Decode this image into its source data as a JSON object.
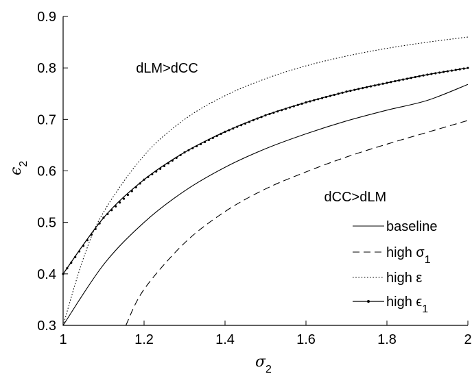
{
  "chart_data": {
    "type": "line",
    "xlabel": "σ",
    "xlabel_sub": "2",
    "ylabel": "ϵ",
    "ylabel_sub": "2",
    "xlim": [
      1,
      2
    ],
    "ylim": [
      0.3,
      0.9
    ],
    "xticks": [
      1,
      1.2,
      1.4,
      1.6,
      1.8,
      2
    ],
    "xtick_labels": [
      "1",
      "1.2",
      "1.4",
      "1.6",
      "1.8",
      "2"
    ],
    "yticks": [
      0.3,
      0.4,
      0.5,
      0.6,
      0.7,
      0.8,
      0.9
    ],
    "ytick_labels": [
      "0.3",
      "0.4",
      "0.5",
      "0.6",
      "0.7",
      "0.8",
      "0.9"
    ],
    "grid": false,
    "legend_position": "lower-right",
    "annotations": [
      {
        "text": "dLM>dCC",
        "x": 1.18,
        "y": 0.8
      },
      {
        "text": "dCC>dLM",
        "x": 1.645,
        "y": 0.55
      }
    ],
    "series": [
      {
        "name": "baseline",
        "label_main": "baseline",
        "label_sub": "",
        "style": "solid",
        "markers": false,
        "x": [
          1.0,
          1.1,
          1.2,
          1.3,
          1.4,
          1.5,
          1.6,
          1.7,
          1.8,
          1.9,
          2.0
        ],
        "y": [
          0.3,
          0.418,
          0.5,
          0.561,
          0.607,
          0.643,
          0.672,
          0.697,
          0.718,
          0.737,
          0.768
        ]
      },
      {
        "name": "high σ1",
        "label_main": "high σ",
        "label_sub": "1",
        "style": "dashed",
        "markers": false,
        "x": [
          1.155,
          1.2,
          1.3,
          1.4,
          1.5,
          1.6,
          1.7,
          1.8,
          1.9,
          2.0
        ],
        "y": [
          0.3,
          0.37,
          0.46,
          0.521,
          0.565,
          0.598,
          0.627,
          0.652,
          0.675,
          0.698
        ]
      },
      {
        "name": "high ε",
        "label_main": "high ε",
        "label_sub": "",
        "style": "dotted",
        "markers": false,
        "x": [
          1.0,
          1.05,
          1.1,
          1.2,
          1.3,
          1.4,
          1.5,
          1.6,
          1.7,
          1.8,
          1.9,
          2.0
        ],
        "y": [
          0.3,
          0.43,
          0.52,
          0.63,
          0.7,
          0.746,
          0.779,
          0.804,
          0.823,
          0.838,
          0.85,
          0.86
        ]
      },
      {
        "name": "high ϵ1",
        "label_main": "high ϵ",
        "label_sub": "1",
        "style": "solid",
        "markers": true,
        "x": [
          1.0,
          1.1,
          1.2,
          1.3,
          1.4,
          1.5,
          1.6,
          1.7,
          1.8,
          1.9,
          2.0
        ],
        "y": [
          0.4,
          0.509,
          0.583,
          0.636,
          0.676,
          0.708,
          0.733,
          0.754,
          0.771,
          0.787,
          0.8
        ]
      }
    ]
  }
}
